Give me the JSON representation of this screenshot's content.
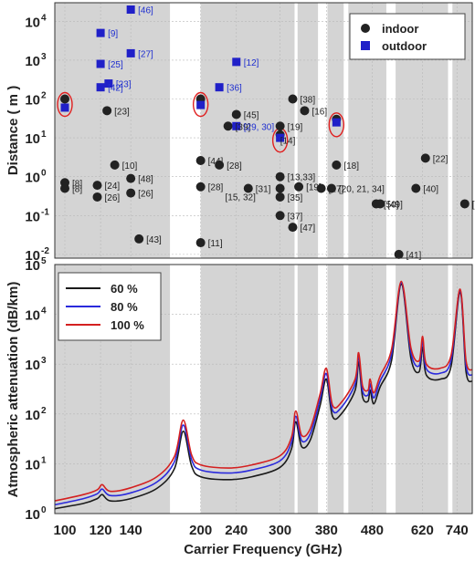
{
  "chart_data": [
    {
      "type": "scatter",
      "xscale": "log",
      "yscale": "log",
      "xlim": [
        95,
        800
      ],
      "ylim": [
        0.008,
        30000
      ],
      "ylabel": "Distance ( m )",
      "yticks": [
        0.01,
        0.1,
        1,
        10,
        100,
        1000,
        10000
      ],
      "ytick_labels": [
        "10",
        "10",
        "10",
        "10",
        "10",
        "10",
        "10"
      ],
      "ytick_exponents": [
        "-2",
        "-1",
        "0",
        "1",
        "2",
        "3",
        "4"
      ],
      "grid": true,
      "legend": {
        "position": "top-right",
        "entries": [
          "indoor",
          "outdoor"
        ]
      },
      "series": [
        {
          "name": "indoor",
          "color": "#222222",
          "marker": "circle",
          "points": [
            {
              "x": 100,
              "y": 100,
              "label": "",
              "circled": true
            },
            {
              "x": 100,
              "y": 0.7,
              "label": "[8]"
            },
            {
              "x": 100,
              "y": 0.5,
              "label": "[8]"
            },
            {
              "x": 118,
              "y": 0.6,
              "label": "[24]"
            },
            {
              "x": 118,
              "y": 0.3,
              "label": "[26]"
            },
            {
              "x": 124,
              "y": 50,
              "label": "[23]"
            },
            {
              "x": 129,
              "y": 2,
              "label": "[10]"
            },
            {
              "x": 140,
              "y": 0.9,
              "label": "[48]"
            },
            {
              "x": 140,
              "y": 0.38,
              "label": "[26]"
            },
            {
              "x": 146,
              "y": 0.025,
              "label": "[43]"
            },
            {
              "x": 200,
              "y": 100,
              "label": "",
              "circled": true
            },
            {
              "x": 200,
              "y": 2.6,
              "label": "[44]"
            },
            {
              "x": 200,
              "y": 0.55,
              "label": "[28]"
            },
            {
              "x": 200,
              "y": 0.02,
              "label": "[11]"
            },
            {
              "x": 220,
              "y": 2,
              "label": "[28]"
            },
            {
              "x": 230,
              "y": 20,
              "label": "[39]"
            },
            {
              "x": 240,
              "y": 40,
              "label": "[45]"
            },
            {
              "x": 255,
              "y": 0.5,
              "label": "[31]"
            },
            {
              "x": 300,
              "y": 20,
              "label": "[19]"
            },
            {
              "x": 300,
              "y": 12,
              "label": "",
              "circled": true
            },
            {
              "x": 300,
              "y": 1,
              "label": "[13,33]"
            },
            {
              "x": 300,
              "y": 0.5,
              "label": ""
            },
            {
              "x": 300,
              "y": 0.3,
              "label": "[35]"
            },
            {
              "x": 300,
              "y": 0.1,
              "label": "[37]"
            },
            {
              "x": 320,
              "y": 100,
              "label": "[38]"
            },
            {
              "x": 320,
              "y": 0.05,
              "label": "[47]"
            },
            {
              "x": 330,
              "y": 0.55,
              "label": "[19]"
            },
            {
              "x": 340,
              "y": 50,
              "label": "[16]"
            },
            {
              "x": 370,
              "y": 0.5,
              "label": "[17]"
            },
            {
              "x": 390,
              "y": 0.5,
              "label": "[20, 21, 34]"
            },
            {
              "x": 400,
              "y": 30,
              "label": "",
              "circled": true
            },
            {
              "x": 400,
              "y": 2,
              "label": "[18]"
            },
            {
              "x": 490,
              "y": 0.2,
              "label": "[50]"
            },
            {
              "x": 500,
              "y": 0.2,
              "label": "[49]"
            },
            {
              "x": 550,
              "y": 0.01,
              "label": "[41]"
            },
            {
              "x": 600,
              "y": 0.5,
              "label": "[40]"
            },
            {
              "x": 630,
              "y": 3,
              "label": "[22]"
            },
            {
              "x": 770,
              "y": 0.2,
              "label": "[50]"
            }
          ],
          "annotations": [
            {
              "text": "[15, 32]",
              "x": 245,
              "y": 0.25
            },
            {
              "text": "[14]",
              "x": 312,
              "y": 7
            }
          ]
        },
        {
          "name": "outdoor",
          "color": "#2020c8",
          "marker": "square",
          "points": [
            {
              "x": 100,
              "y": 60,
              "label": "",
              "circled": true
            },
            {
              "x": 120,
              "y": 800,
              "label": "[25]"
            },
            {
              "x": 120,
              "y": 5000,
              "label": "[9]"
            },
            {
              "x": 120,
              "y": 200,
              "label": "[42]"
            },
            {
              "x": 125,
              "y": 250,
              "label": "[23]"
            },
            {
              "x": 140,
              "y": 20000,
              "label": "[46]"
            },
            {
              "x": 140,
              "y": 1500,
              "label": "[27]"
            },
            {
              "x": 200,
              "y": 70,
              "label": "",
              "circled": true
            },
            {
              "x": 220,
              "y": 200,
              "label": "[36]"
            },
            {
              "x": 240,
              "y": 900,
              "label": "[12]"
            },
            {
              "x": 240,
              "y": 20,
              "label": "[29, 30]"
            },
            {
              "x": 300,
              "y": 10,
              "label": "",
              "circled": true
            },
            {
              "x": 400,
              "y": 25,
              "label": "",
              "circled": true
            }
          ]
        }
      ]
    },
    {
      "type": "line",
      "xscale": "log",
      "yscale": "log",
      "xlim": [
        95,
        800
      ],
      "ylim": [
        1,
        100000
      ],
      "xlabel": "Carrier Frequency (GHz)",
      "ylabel": "Atmospheric attenuation (dB/km)",
      "xticks": [
        100,
        120,
        140,
        200,
        240,
        300,
        380,
        480,
        620,
        740
      ],
      "xtick_labels": [
        "100",
        "120",
        "140",
        "200",
        "240",
        "300",
        "380",
        "480",
        "620",
        "740"
      ],
      "yticks": [
        1,
        10,
        100,
        1000,
        10000,
        100000
      ],
      "ytick_labels": [
        "10",
        "10",
        "10",
        "10",
        "10",
        "10"
      ],
      "ytick_exponents": [
        "0",
        "1",
        "2",
        "3",
        "4",
        "5"
      ],
      "grid": true,
      "legend": {
        "position": "top-left",
        "entries": [
          "60 %",
          "80 %",
          "100 %"
        ]
      },
      "series": [
        {
          "name": "60 %",
          "color": "#1a1a1a",
          "x": [
            95,
            110,
            118,
            121,
            126,
            140,
            160,
            175,
            183,
            191,
            200,
            230,
            260,
            300,
            318,
            325,
            335,
            350,
            368,
            380,
            392,
            410,
            440,
            448,
            457,
            470,
            475,
            484,
            500,
            530,
            557,
            585,
            610,
            621,
            633,
            680,
            718,
            752,
            775,
            800
          ],
          "y": [
            1.25,
            1.6,
            2.0,
            2.4,
            1.8,
            2.0,
            3.2,
            8,
            45,
            9,
            5.5,
            4.8,
            5.5,
            8.5,
            20,
            70,
            22,
            30,
            150,
            500,
            90,
            100,
            300,
            1100,
            220,
            180,
            300,
            160,
            350,
            1200,
            40000,
            1300,
            700,
            2200,
            600,
            500,
            900,
            28000,
            700,
            450
          ]
        },
        {
          "name": "80 %",
          "color": "#2a2adc",
          "x": [
            95,
            110,
            118,
            121,
            126,
            140,
            160,
            175,
            183,
            191,
            200,
            230,
            260,
            300,
            318,
            325,
            335,
            350,
            368,
            380,
            392,
            410,
            440,
            448,
            457,
            470,
            475,
            484,
            500,
            530,
            557,
            585,
            610,
            621,
            633,
            680,
            718,
            752,
            775,
            800
          ],
          "y": [
            1.5,
            2.0,
            2.5,
            3.1,
            2.3,
            2.6,
            4.3,
            11,
            60,
            12,
            7.5,
            6.5,
            7.5,
            11.5,
            27,
            90,
            29,
            40,
            200,
            650,
            120,
            135,
            400,
            1400,
            290,
            240,
            400,
            210,
            460,
            1600,
            43000,
            1700,
            930,
            2900,
            800,
            660,
            1200,
            30000,
            930,
            600
          ]
        },
        {
          "name": "100 %",
          "color": "#d42020",
          "x": [
            95,
            110,
            118,
            121,
            126,
            140,
            160,
            175,
            183,
            191,
            200,
            230,
            260,
            300,
            318,
            325,
            335,
            350,
            368,
            380,
            392,
            410,
            440,
            448,
            457,
            470,
            475,
            484,
            500,
            530,
            557,
            585,
            610,
            621,
            633,
            680,
            718,
            752,
            775,
            800
          ],
          "y": [
            1.8,
            2.4,
            3.0,
            3.8,
            2.8,
            3.3,
            5.5,
            14,
            75,
            15,
            9.5,
            8.2,
            9.5,
            14.5,
            34,
            115,
            37,
            51,
            255,
            820,
            150,
            170,
            500,
            1700,
            365,
            300,
            500,
            265,
            580,
            2000,
            46000,
            2100,
            1170,
            3600,
            1000,
            830,
            1500,
            32000,
            1170,
            760
          ]
        }
      ]
    }
  ]
}
